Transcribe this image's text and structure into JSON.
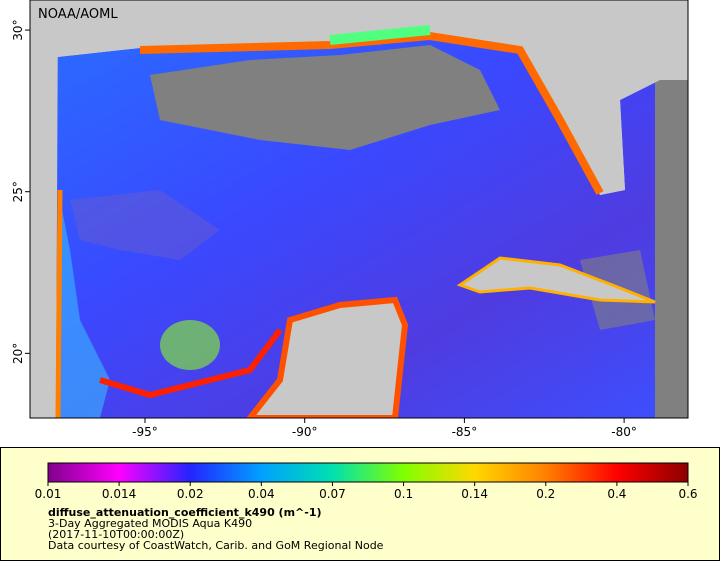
{
  "map": {
    "watermark": "NOAA/AOML",
    "xlim": [
      -98.6,
      -78
    ],
    "ylim": [
      18,
      30.93
    ],
    "xticks": [
      {
        "value": -95,
        "label": "-95°"
      },
      {
        "value": -90,
        "label": "-90°"
      },
      {
        "value": -85,
        "label": "-85°"
      },
      {
        "value": -80,
        "label": "-80°"
      }
    ],
    "yticks": [
      {
        "value": 30,
        "label": "30°"
      },
      {
        "value": 25,
        "label": "25°"
      },
      {
        "value": 20,
        "label": "20°"
      }
    ]
  },
  "colorbar": {
    "ticks": [
      0.01,
      0.014,
      0.02,
      0.04,
      0.07,
      0.1,
      0.14,
      0.2,
      0.4,
      0.6
    ],
    "colors": [
      "#80008c",
      "#ff00ff",
      "#2424ff",
      "#00a0ff",
      "#00e0b0",
      "#80ff00",
      "#ffd800",
      "#ff8000",
      "#ff0000",
      "#8c0000"
    ]
  },
  "legend": {
    "variable": "diffuse_attenuation_coefficient_k490 (m^-1)",
    "dataset": "3-Day Aggregated MODIS Aqua K490",
    "time": "(2017-11-10T00:00:00Z)",
    "credit": "Data courtesy of CoastWatch, Carib. and GoM Regional Node"
  }
}
